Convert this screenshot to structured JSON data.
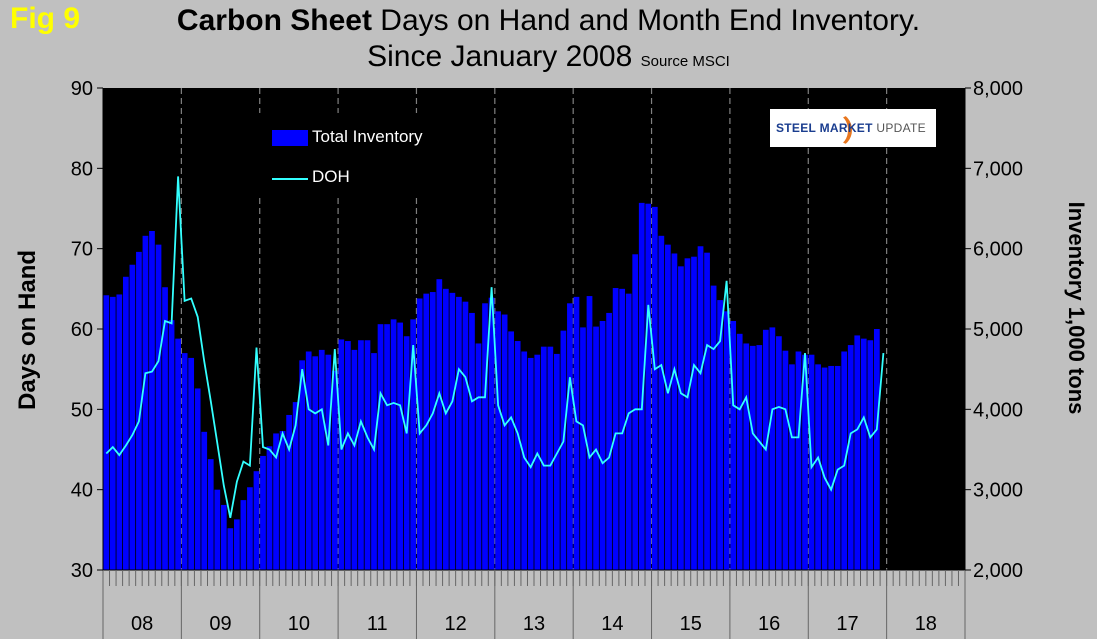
{
  "figure": {
    "fig_label": "Fig 9",
    "title_bold": "Carbon Sheet",
    "title_rest": " Days on Hand and Month End Inventory.",
    "title_line2": "Since January 2008",
    "source": "Source MSCI",
    "logo_text_main": "STEEL MARKET",
    "logo_text_sub": "UPDATE"
  },
  "chart_data": {
    "type": "bar+line",
    "title": "Carbon Sheet Days on Hand and Month End Inventory. Since January 2008",
    "subtitle": "Source MSCI",
    "ylabel_left": "Days on Hand",
    "ylabel_right": "Inventory 1,000 tons",
    "ylim_left": [
      30,
      90
    ],
    "ylim_right": [
      2000,
      8000
    ],
    "yticks_left": [
      "30",
      "40",
      "50",
      "60",
      "70",
      "80",
      "90"
    ],
    "yticks_right": [
      "2,000",
      "3,000",
      "4,000",
      "5,000",
      "6,000",
      "7,000",
      "8,000"
    ],
    "year_labels": [
      "08",
      "09",
      "10",
      "11",
      "12",
      "13",
      "14",
      "15",
      "16",
      "17",
      "18"
    ],
    "months_per_year": 12,
    "legend": {
      "position": "top-left",
      "entries": [
        "Total Inventory",
        "DOH"
      ]
    },
    "colors": {
      "plot_bg": "#000000",
      "bars": "#0000ff",
      "line": "#33ffff",
      "grid": "#808080",
      "page_bg": "#c0c0c0"
    },
    "series": [
      {
        "name": "Total Inventory",
        "kind": "bar",
        "axis": "right",
        "values": [
          5420,
          5400,
          5430,
          5650,
          5800,
          5960,
          6160,
          6220,
          6050,
          5520,
          5110,
          4880,
          4700,
          4640,
          4260,
          3720,
          3380,
          3000,
          2810,
          2520,
          2630,
          2870,
          3030,
          3230,
          3420,
          3540,
          3700,
          3730,
          3930,
          4090,
          4610,
          4720,
          4660,
          4740,
          4680,
          4480,
          4870,
          4850,
          4740,
          4860,
          4860,
          4700,
          5060,
          5060,
          5120,
          5080,
          4910,
          5120,
          5380,
          5440,
          5460,
          5620,
          5500,
          5450,
          5400,
          5340,
          5200,
          4820,
          5320,
          5390,
          5220,
          5180,
          4970,
          4850,
          4720,
          4640,
          4680,
          4780,
          4780,
          4690,
          4980,
          5320,
          5400,
          5020,
          5410,
          5030,
          5100,
          5200,
          5510,
          5500,
          5440,
          5930,
          6570,
          6560,
          6520,
          6160,
          6050,
          5940,
          5780,
          5880,
          5900,
          6030,
          5950,
          5540,
          5360,
          5220,
          5100,
          4940,
          4820,
          4790,
          4800,
          4990,
          5020,
          4910,
          4730,
          4560,
          4720,
          4680,
          4680,
          4560,
          4520,
          4540,
          4540,
          4720,
          4800,
          4920,
          4880,
          4860,
          5000
        ]
      },
      {
        "name": "DOH",
        "kind": "line",
        "axis": "left",
        "values": [
          44.5,
          45.3,
          44.3,
          45.5,
          46.8,
          48.5,
          54.5,
          54.7,
          56.0,
          61.0,
          60.7,
          79.0,
          63.5,
          63.8,
          61.5,
          56.0,
          51.0,
          45.8,
          40.5,
          36.5,
          41.0,
          43.5,
          43.0,
          57.7,
          45.3,
          45.0,
          44.0,
          47.0,
          45.0,
          48.0,
          55.0,
          50.0,
          49.5,
          50.0,
          45.5,
          57.5,
          45.0,
          47.0,
          45.5,
          48.5,
          46.5,
          45.0,
          52.0,
          50.5,
          50.8,
          50.5,
          47.0,
          58.0,
          47.0,
          48.0,
          49.5,
          52.0,
          49.5,
          51.0,
          55.0,
          54.0,
          51.0,
          51.5,
          51.5,
          65.2,
          50.5,
          48.0,
          49.0,
          47.0,
          44.0,
          42.8,
          44.5,
          43.0,
          43.0,
          44.5,
          46.0,
          54.0,
          48.5,
          48.0,
          44.0,
          45.0,
          43.3,
          44.0,
          47.0,
          47.0,
          49.5,
          50.0,
          50.0,
          63.0,
          55.0,
          55.5,
          52.0,
          55.0,
          52.0,
          51.5,
          55.5,
          54.5,
          58.0,
          57.5,
          58.5,
          66.0,
          50.5,
          50.0,
          51.5,
          47.0,
          46.0,
          45.0,
          50.0,
          50.3,
          50.0,
          46.5,
          46.5,
          57.0,
          42.8,
          44.0,
          41.5,
          40.0,
          42.5,
          43.0,
          47.0,
          47.5,
          49.0,
          46.5,
          47.5,
          57.0
        ]
      }
    ]
  }
}
